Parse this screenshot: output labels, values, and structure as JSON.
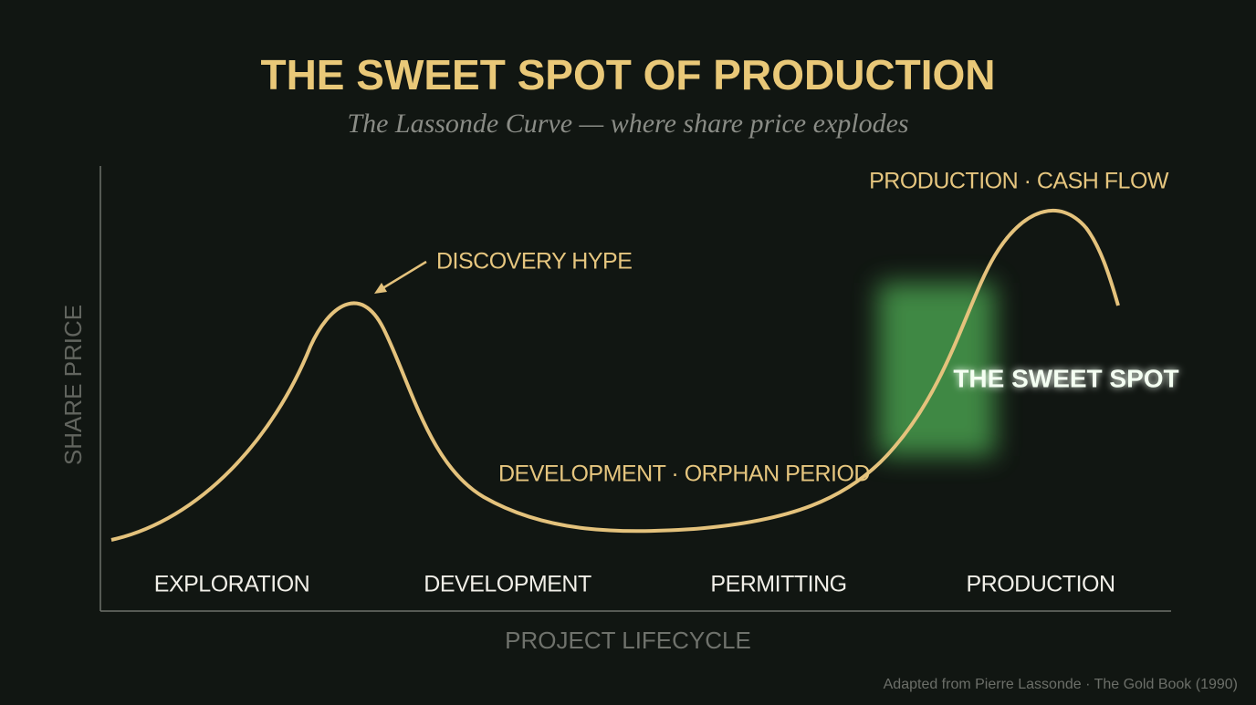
{
  "header": {
    "title": "THE SWEET SPOT OF PRODUCTION",
    "subtitle": "The Lassonde Curve — where share price explodes"
  },
  "axes": {
    "y_label": "SHARE PRICE",
    "x_label": "PROJECT LIFECYCLE"
  },
  "stages": [
    "EXPLORATION",
    "DEVELOPMENT",
    "PERMITTING",
    "PRODUCTION"
  ],
  "annotations": {
    "discovery": "DISCOVERY HYPE",
    "orphan": "DEVELOPMENT · ORPHAN PERIOD",
    "cash_flow": "PRODUCTION · CASH FLOW",
    "sweet_spot": "THE SWEET SPOT"
  },
  "source": "Adapted from Pierre Lassonde · The Gold Book (1990)"
}
